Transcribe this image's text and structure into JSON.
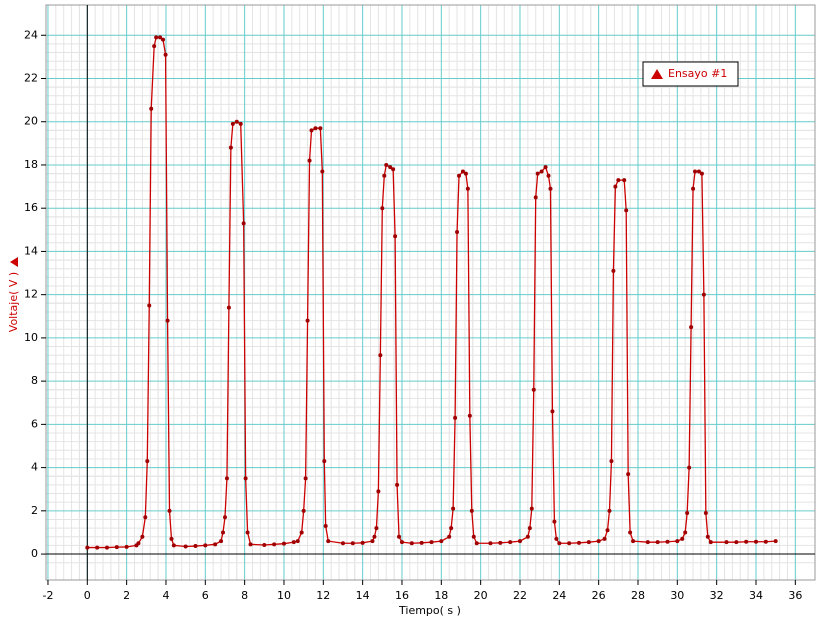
{
  "chart_data": {
    "type": "line",
    "xlabel": "Tiempo( s )",
    "ylabel": "Voltaje( V )",
    "x": [
      0,
      0.5,
      1,
      1.5,
      2,
      2.5,
      2.6,
      2.8,
      2.95,
      3.05,
      3.15,
      3.25,
      3.4,
      3.5,
      3.7,
      3.85,
      3.98,
      4.08,
      4.18,
      4.28,
      4.4,
      5,
      5.5,
      6,
      6.5,
      6.8,
      6.9,
      7,
      7.1,
      7.2,
      7.3,
      7.4,
      7.6,
      7.8,
      7.95,
      8.05,
      8.15,
      8.3,
      9,
      9.5,
      10,
      10.5,
      10.7,
      10.9,
      11,
      11.1,
      11.2,
      11.3,
      11.4,
      11.6,
      11.85,
      11.95,
      12.05,
      12.12,
      12.25,
      13,
      13.5,
      14,
      14.5,
      14.6,
      14.7,
      14.8,
      14.9,
      15,
      15.1,
      15.2,
      15.4,
      15.55,
      15.65,
      15.75,
      15.85,
      16,
      16.5,
      17,
      17.5,
      18,
      18.4,
      18.5,
      18.6,
      18.7,
      18.8,
      18.9,
      19.1,
      19.25,
      19.35,
      19.45,
      19.55,
      19.65,
      19.8,
      20.5,
      21,
      21.5,
      22,
      22.4,
      22.5,
      22.6,
      22.7,
      22.8,
      22.9,
      23.1,
      23.3,
      23.45,
      23.55,
      23.65,
      23.75,
      23.85,
      24,
      24.5,
      25,
      25.5,
      26,
      26.3,
      26.45,
      26.55,
      26.65,
      26.75,
      26.85,
      27,
      27.3,
      27.4,
      27.5,
      27.6,
      27.75,
      28.5,
      29,
      29.5,
      30,
      30.25,
      30.4,
      30.5,
      30.6,
      30.7,
      30.8,
      30.9,
      31.1,
      31.25,
      31.35,
      31.45,
      31.55,
      31.7,
      32.5,
      33,
      33.5,
      34,
      34.5,
      35
    ],
    "series": [
      {
        "name": "Ensayo #1",
        "color": "#cc0000",
        "values": [
          0.3,
          0.3,
          0.3,
          0.32,
          0.33,
          0.4,
          0.5,
          0.8,
          1.7,
          4.3,
          11.5,
          20.6,
          23.5,
          23.9,
          23.9,
          23.8,
          23.1,
          10.8,
          2.0,
          0.7,
          0.4,
          0.35,
          0.37,
          0.4,
          0.45,
          0.6,
          1.0,
          1.7,
          3.5,
          11.4,
          18.8,
          19.9,
          20.0,
          19.9,
          15.3,
          3.5,
          1.0,
          0.45,
          0.42,
          0.45,
          0.48,
          0.55,
          0.6,
          1.0,
          2.0,
          3.5,
          10.8,
          18.2,
          19.6,
          19.7,
          19.7,
          17.7,
          4.3,
          1.3,
          0.6,
          0.5,
          0.5,
          0.52,
          0.6,
          0.8,
          1.2,
          2.9,
          9.2,
          16.0,
          17.5,
          18.0,
          17.9,
          17.8,
          14.7,
          3.2,
          0.8,
          0.55,
          0.5,
          0.52,
          0.55,
          0.6,
          0.8,
          1.2,
          2.1,
          6.3,
          14.9,
          17.5,
          17.7,
          17.6,
          16.9,
          6.4,
          2.0,
          0.8,
          0.5,
          0.5,
          0.52,
          0.55,
          0.6,
          0.8,
          1.2,
          2.1,
          7.6,
          16.5,
          17.6,
          17.7,
          17.9,
          17.5,
          16.9,
          6.6,
          1.5,
          0.7,
          0.5,
          0.5,
          0.52,
          0.55,
          0.6,
          0.7,
          1.1,
          2.0,
          4.3,
          13.1,
          17.0,
          17.3,
          17.3,
          15.9,
          3.7,
          1.0,
          0.6,
          0.55,
          0.55,
          0.57,
          0.6,
          0.7,
          1.0,
          1.9,
          4.0,
          10.5,
          16.9,
          17.7,
          17.7,
          17.6,
          12.0,
          1.9,
          0.8,
          0.55,
          0.55,
          0.55,
          0.57,
          0.57,
          0.57,
          0.6
        ]
      }
    ],
    "xlim": [
      -2.1,
      37
    ],
    "ylim": [
      -1.2,
      25.4
    ],
    "xticks": [
      -2,
      0,
      2,
      4,
      6,
      8,
      10,
      12,
      14,
      16,
      18,
      20,
      22,
      24,
      26,
      28,
      30,
      32,
      34,
      36
    ],
    "yticks": [
      0,
      2,
      4,
      6,
      8,
      10,
      12,
      14,
      16,
      18,
      20,
      22,
      24
    ],
    "grid": true,
    "minor_grid": true,
    "legend": "upper right"
  }
}
